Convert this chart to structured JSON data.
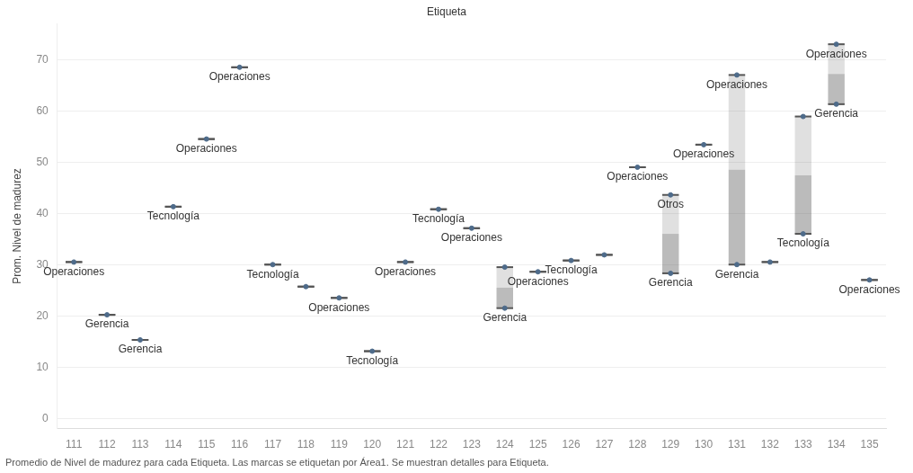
{
  "chart_data": {
    "type": "box",
    "title": "Etiqueta",
    "ylabel": "Prom. Nivel de madurez",
    "categories": [
      "111",
      "112",
      "113",
      "114",
      "115",
      "116",
      "117",
      "118",
      "119",
      "120",
      "121",
      "122",
      "123",
      "124",
      "125",
      "126",
      "127",
      "128",
      "129",
      "130",
      "131",
      "132",
      "133",
      "134",
      "135"
    ],
    "series": [
      {
        "type": "box",
        "color": "#555555",
        "boxes": [
          {
            "low": 30.5,
            "q1": 30.5,
            "median": 30.5,
            "q3": 30.5,
            "high": 30.5
          },
          {
            "low": 20.2,
            "q1": 20.2,
            "median": 20.2,
            "q3": 20.2,
            "high": 20.2
          },
          {
            "low": 15.3,
            "q1": 15.3,
            "median": 15.3,
            "q3": 15.3,
            "high": 15.3
          },
          {
            "low": 41.3,
            "q1": 41.3,
            "median": 41.3,
            "q3": 41.3,
            "high": 41.3
          },
          {
            "low": 54.5,
            "q1": 54.5,
            "median": 54.5,
            "q3": 54.5,
            "high": 54.5
          },
          {
            "low": 68.5,
            "q1": 68.5,
            "median": 68.5,
            "q3": 68.5,
            "high": 68.5
          },
          {
            "low": 30.0,
            "q1": 30.0,
            "median": 30.0,
            "q3": 30.0,
            "high": 30.0
          },
          {
            "low": 25.7,
            "q1": 25.7,
            "median": 25.7,
            "q3": 25.7,
            "high": 25.7
          },
          {
            "low": 23.5,
            "q1": 23.5,
            "median": 23.5,
            "q3": 23.5,
            "high": 23.5
          },
          {
            "low": 13.1,
            "q1": 13.1,
            "median": 13.1,
            "q3": 13.1,
            "high": 13.1
          },
          {
            "low": 30.5,
            "q1": 30.5,
            "median": 30.5,
            "q3": 30.5,
            "high": 30.5
          },
          {
            "low": 40.8,
            "q1": 40.8,
            "median": 40.8,
            "q3": 40.8,
            "high": 40.8
          },
          {
            "low": 37.1,
            "q1": 37.1,
            "median": 37.1,
            "q3": 37.1,
            "high": 37.1
          },
          {
            "low": 21.5,
            "q1": 21.5,
            "median": 25.5,
            "q3": 29.5,
            "high": 29.5
          },
          {
            "low": 28.6,
            "q1": 28.6,
            "median": 28.6,
            "q3": 28.6,
            "high": 28.6
          },
          {
            "low": 30.8,
            "q1": 30.8,
            "median": 30.8,
            "q3": 30.8,
            "high": 30.8
          },
          {
            "low": 31.9,
            "q1": 31.9,
            "median": 31.9,
            "q3": 31.9,
            "high": 31.9
          },
          {
            "low": 49.0,
            "q1": 49.0,
            "median": 49.0,
            "q3": 49.0,
            "high": 49.0
          },
          {
            "low": 28.3,
            "q1": 28.3,
            "median": 36.0,
            "q3": 43.6,
            "high": 43.6
          },
          {
            "low": 53.4,
            "q1": 53.4,
            "median": 53.4,
            "q3": 53.4,
            "high": 53.4
          },
          {
            "low": 30.0,
            "q1": 30.0,
            "median": 48.5,
            "q3": 67.0,
            "high": 67.0
          },
          {
            "low": 30.5,
            "q1": 30.5,
            "median": 30.5,
            "q3": 30.5,
            "high": 30.5
          },
          {
            "low": 36.0,
            "q1": 36.0,
            "median": 47.4,
            "q3": 58.9,
            "high": 58.9
          },
          {
            "low": 61.3,
            "q1": 61.3,
            "median": 67.2,
            "q3": 73.0,
            "high": 73.0
          },
          {
            "low": 27.0,
            "q1": 27.0,
            "median": 27.0,
            "q3": 27.0,
            "high": 27.0
          }
        ]
      },
      {
        "type": "scatter",
        "color": "#4e6b8a",
        "x": [
          "111",
          "112",
          "113",
          "114",
          "115",
          "116",
          "117",
          "118",
          "119",
          "120",
          "121",
          "122",
          "123",
          "124",
          "124",
          "125",
          "126",
          "127",
          "128",
          "129",
          "129",
          "130",
          "131",
          "131",
          "132",
          "133",
          "133",
          "134",
          "134",
          "135"
        ],
        "values": [
          30.5,
          20.2,
          15.3,
          41.3,
          54.5,
          68.5,
          30.0,
          25.7,
          23.5,
          13.1,
          30.5,
          40.8,
          37.1,
          29.5,
          21.5,
          28.6,
          30.8,
          31.9,
          49.0,
          43.6,
          28.3,
          53.4,
          67.0,
          30.0,
          30.5,
          58.9,
          36.0,
          73.0,
          61.3,
          27.0
        ]
      }
    ],
    "ylim": [
      -2,
      77
    ],
    "yticks": [
      0,
      10,
      20,
      30,
      40,
      50,
      60,
      70
    ],
    "grid": "y",
    "marker": "circle",
    "annotations": [
      {
        "text": "Operaciones",
        "x": "111",
        "y": 30.5
      },
      {
        "text": "Gerencia",
        "x": "112",
        "y": 20.2
      },
      {
        "text": "Gerencia",
        "x": "113",
        "y": 15.3
      },
      {
        "text": "Tecnología",
        "x": "114",
        "y": 41.3
      },
      {
        "text": "Operaciones",
        "x": "115",
        "y": 54.5
      },
      {
        "text": "Operaciones",
        "x": "116",
        "y": 68.5
      },
      {
        "text": "Tecnología",
        "x": "117",
        "y": 30.0
      },
      {
        "text": "Operaciones",
        "x": "119",
        "y": 23.5
      },
      {
        "text": "Tecnología",
        "x": "120",
        "y": 13.1
      },
      {
        "text": "Operaciones",
        "x": "121",
        "y": 30.5
      },
      {
        "text": "Tecnología",
        "x": "122",
        "y": 40.8
      },
      {
        "text": "Operaciones",
        "x": "123",
        "y": 37.1
      },
      {
        "text": "Gerencia",
        "x": "124",
        "y": 21.5
      },
      {
        "text": "Operaciones",
        "x": "125",
        "y": 28.6
      },
      {
        "text": "Tecnología",
        "x": "126",
        "y": 30.8
      },
      {
        "text": "Operaciones",
        "x": "128",
        "y": 49.0
      },
      {
        "text": "Otros",
        "x": "129",
        "y": 43.6
      },
      {
        "text": "Gerencia",
        "x": "129",
        "y": 28.3
      },
      {
        "text": "Operaciones",
        "x": "130",
        "y": 53.4
      },
      {
        "text": "Operaciones",
        "x": "131",
        "y": 67.0
      },
      {
        "text": "Gerencia",
        "x": "131",
        "y": 30.0
      },
      {
        "text": "Tecnología",
        "x": "133",
        "y": 36.0
      },
      {
        "text": "Operaciones",
        "x": "134",
        "y": 73.0
      },
      {
        "text": "Gerencia",
        "x": "134",
        "y": 61.3
      },
      {
        "text": "Operaciones",
        "x": "135",
        "y": 27.0
      },
      "Promedio de Nivel de madurez para cada Etiqueta.  Las marcas se etiquetan por Área1.  Se muestran detalles para Etiqueta."
    ]
  }
}
